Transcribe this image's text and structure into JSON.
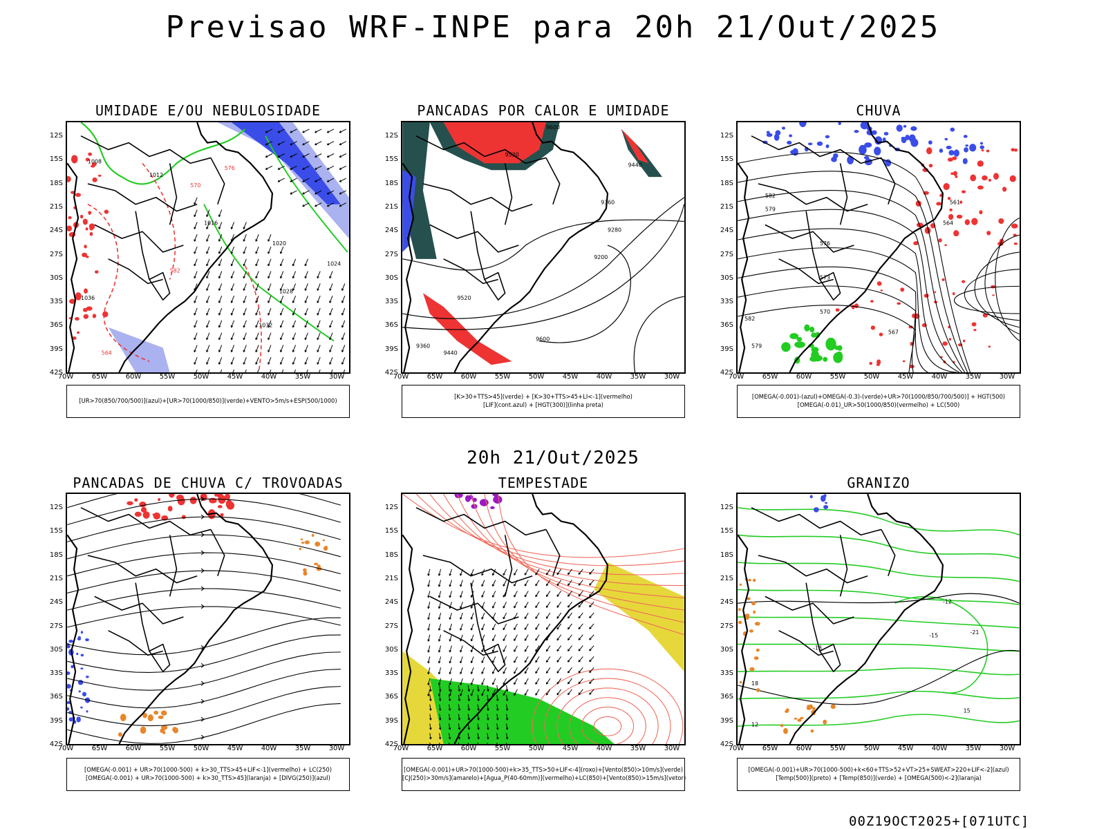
{
  "title": "Previsao WRF-INPE  para 20h 21/Out/2025",
  "mid_title": "20h 21/Out/2025",
  "run_stamp": "00Z19OCT2025+[071UTC]",
  "axes": {
    "lat_labels": [
      "12S",
      "15S",
      "18S",
      "21S",
      "24S",
      "27S",
      "30S",
      "33S",
      "36S",
      "39S",
      "42S"
    ],
    "lon_labels": [
      "70W",
      "65W",
      "60W",
      "55W",
      "50W",
      "45W",
      "40W",
      "35W",
      "30W"
    ]
  },
  "panels": [
    {
      "id": "umidade",
      "title": "UMIDADE E/OU NEBULOSIDADE",
      "legend": [
        "[UR>70(850/700/500)](azul)+[UR>70(1000/850)](verde)+VENTO>5m/s+ESP(500/1000)"
      ],
      "contour_labels": [
        "1008",
        "1012",
        "1016",
        "1020",
        "1024",
        "1028",
        "1032",
        "1036",
        "570",
        "576",
        "582",
        "564"
      ]
    },
    {
      "id": "pancadas-calor",
      "title": "PANCADAS POR CALOR E UMIDADE",
      "legend": [
        "[K>30+TTS>45](verde) + [K>30+TTS>45+LI<-1](vermelho)",
        "[LIF](cont.azul) + [HGT(300)](linha preta)"
      ],
      "contour_labels": [
        "9600",
        "9520",
        "9440",
        "9360",
        "9280",
        "9200"
      ]
    },
    {
      "id": "chuva",
      "title": "CHUVA",
      "legend": [
        "[OMEGA(-0.001)-(azul)+OMEGA(-0.3)-(verde)+UR>70(1000/850/700/500)] + HGT(500)",
        "[OMEGA(-0.01)_UR>50(1000/850)(vermelho) + LC(500)"
      ],
      "contour_labels": [
        "582",
        "579",
        "576",
        "573",
        "570",
        "567",
        "564",
        "561"
      ]
    },
    {
      "id": "pancadas-trovoadas",
      "title": "PANCADAS DE CHUVA C/ TROVOADAS",
      "legend": [
        "[OMEGA(-0.001) + UR>70(1000-500) + k>30_TTS>45+LIF<-1](vermelho) + LC(250)",
        "[OMEGA(-0.001) + UR>70(1000-500) + k>30_TTS>45](laranja) + [DIVG(250)](azul)"
      ],
      "contour_labels": []
    },
    {
      "id": "tempestade",
      "title": "TEMPESTADE",
      "legend": [
        "[OMEGA(-0.001)+UR>70(1000-500)+k>35_TTS>50+LIF<-4](roxo)+[Vento(850)>10m/s](verde)",
        "[CJ(250)>30m/s](amarelo)+[Agua_P(40-60mm)](vermelho)+LC(850)+[Vento(850)>15m/s](vetor)"
      ],
      "contour_labels": []
    },
    {
      "id": "granizo",
      "title": "GRANIZO",
      "legend": [
        "[OMEGA(-0.001)+UR>70(1000-500)+k<60+TTS>52+VT>25+SWEAT>220+LIF<-2](azul)",
        "[Temp(500)](preto) + [Temp(850)](verde) + [OMEGA(500)<-2](laranja)"
      ],
      "contour_labels": [
        "-12",
        "-15",
        "-18",
        "-21",
        "12",
        "15",
        "18"
      ]
    }
  ],
  "colors": {
    "blue": "#3a4de8",
    "light_blue": "#aab2f0",
    "green": "#22cc22",
    "red": "#ee3333",
    "dark_teal": "#25504d",
    "orange": "#e8862a",
    "yellow": "#e6d83a",
    "purple": "#9a19c4",
    "salmon": "#f06a5a"
  }
}
